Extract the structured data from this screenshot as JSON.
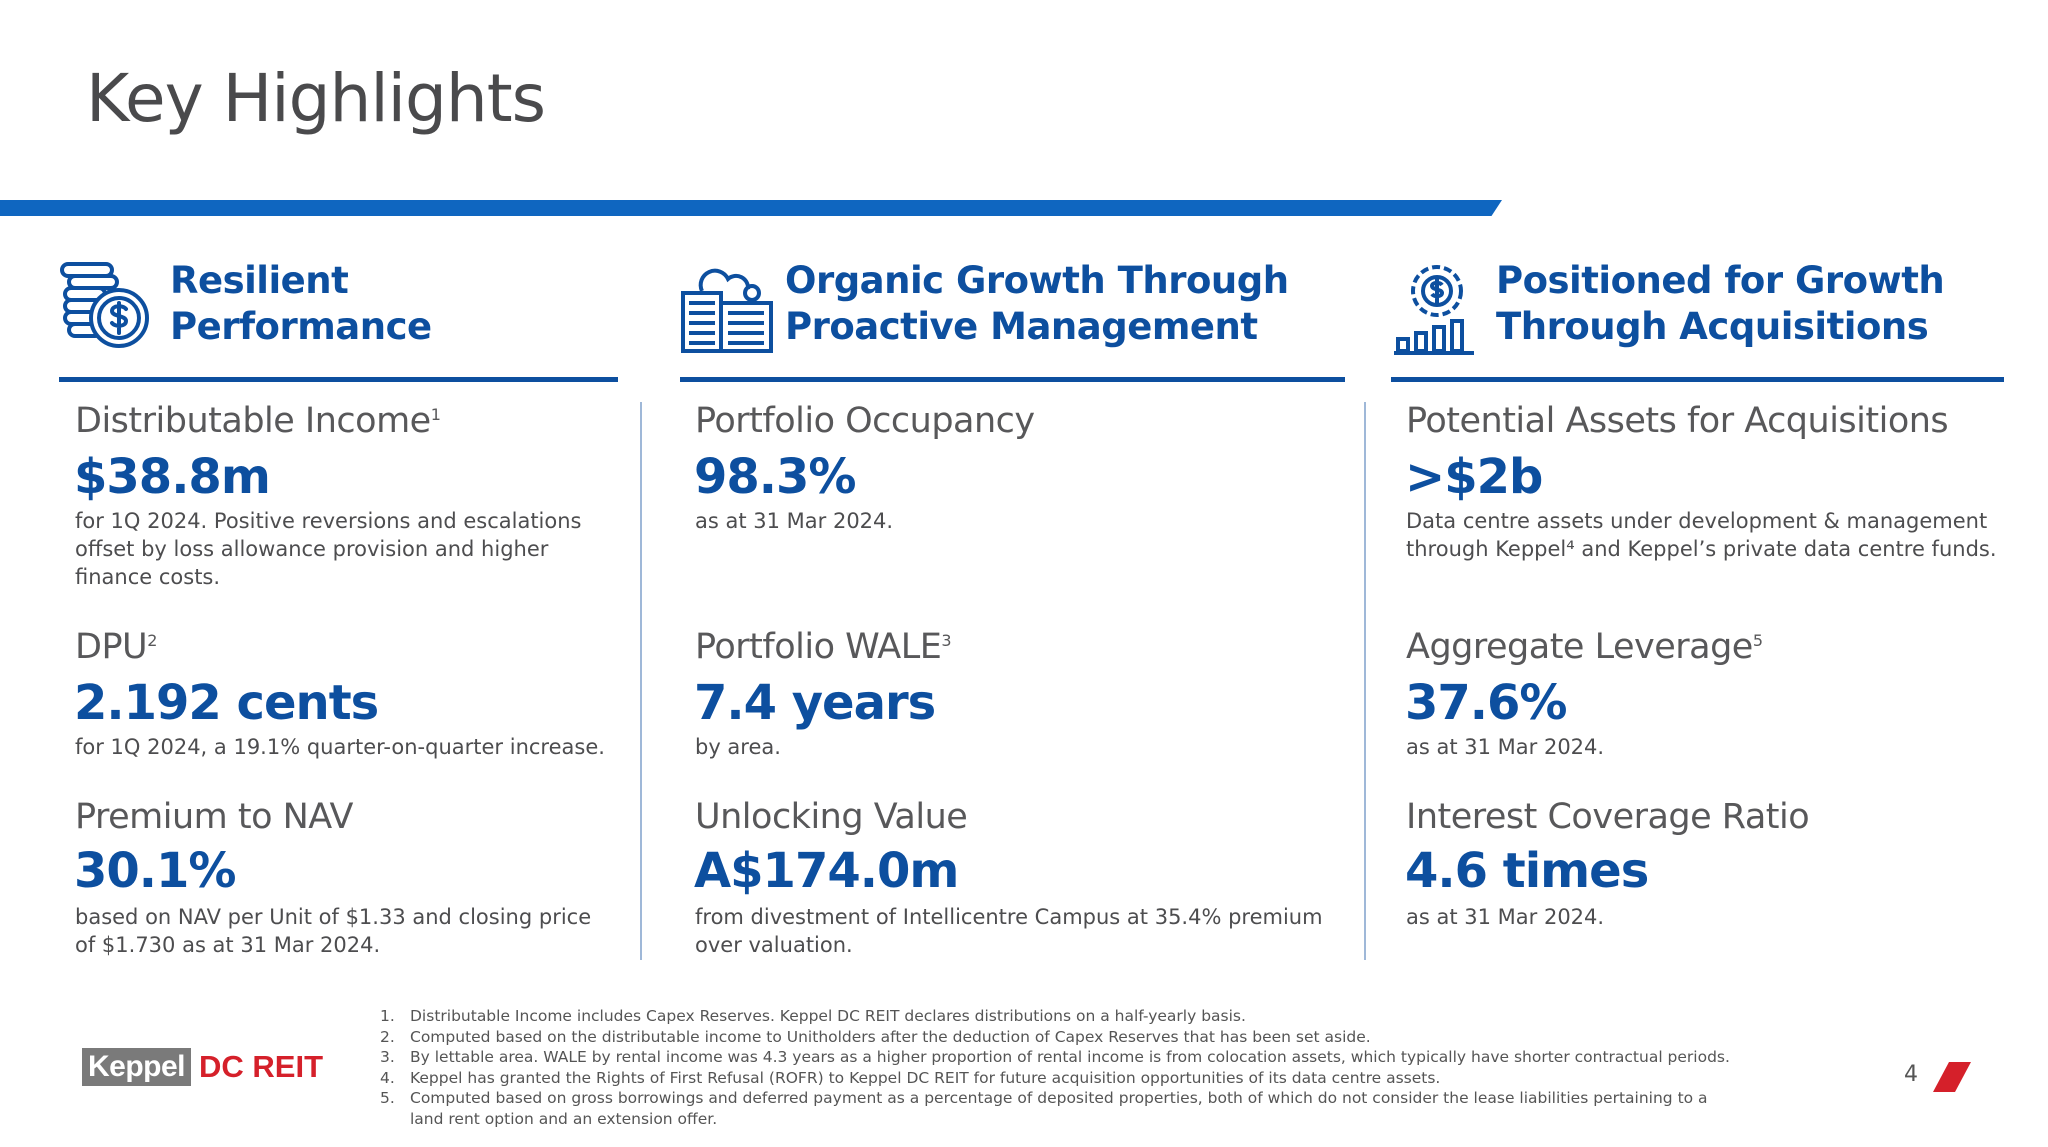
{
  "title": "Key Highlights",
  "colors": {
    "brand_blue": "#0d4f9f",
    "bar_blue": "#0f66c0",
    "logo_red": "#d5202a",
    "logo_gray": "#7a7a7a"
  },
  "columns": [
    {
      "icon": "coins-dollar-icon",
      "heading": [
        "Resilient",
        "Performance"
      ],
      "items": [
        {
          "label": "Distributable Income",
          "sup": "1",
          "value": "$38.8m",
          "desc": "for 1Q 2024. Positive reversions and escalations offset by loss allowance provision and higher finance costs."
        },
        {
          "label": "DPU",
          "sup": "2",
          "value": "2.192 cents",
          "desc": "for 1Q 2024, a 19.1% quarter-on-quarter increase."
        },
        {
          "label": "Premium to NAV",
          "sup": "",
          "value": "30.1%",
          "desc": "based on NAV per Unit of $1.33 and closing price of $1.730 as at 31 Mar 2024."
        }
      ]
    },
    {
      "icon": "data-centre-cloud-icon",
      "heading": [
        "Organic Growth Through",
        "Proactive Management"
      ],
      "items": [
        {
          "label": "Portfolio Occupancy",
          "sup": "",
          "value": "98.3%",
          "desc": "as at 31 Mar 2024."
        },
        {
          "label": "Portfolio WALE",
          "sup": "3",
          "value": "7.4 years",
          "desc": "by area."
        },
        {
          "label": "Unlocking Value",
          "sup": "",
          "value": "A$174.0m",
          "desc": "from divestment of Intellicentre Campus at 35.4% premium over valuation."
        }
      ]
    },
    {
      "icon": "gear-dollar-growth-icon",
      "heading": [
        "Positioned for Growth",
        "Through Acquisitions"
      ],
      "items": [
        {
          "label": "Potential Assets for Acquisitions",
          "sup": "",
          "value": ">$2b",
          "desc": "Data centre assets under development & management through Keppel⁴ and Keppel’s private data centre funds."
        },
        {
          "label": "Aggregate Leverage",
          "sup": "5",
          "value": "37.6%",
          "desc": "as at 31 Mar 2024."
        },
        {
          "label": "Interest Coverage Ratio",
          "sup": "",
          "value": "4.6 times",
          "desc": "as at 31 Mar 2024."
        }
      ]
    }
  ],
  "footnotes": [
    {
      "n": "1.",
      "t": "Distributable Income includes Capex Reserves. Keppel DC REIT declares distributions on a half-yearly basis."
    },
    {
      "n": "2.",
      "t": "Computed based on the distributable income to Unitholders after the deduction of Capex Reserves that has been set aside."
    },
    {
      "n": "3.",
      "t": "By lettable area. WALE by rental income was 4.3 years as a higher proportion of rental income is from colocation assets, which typically have shorter contractual periods."
    },
    {
      "n": "4.",
      "t": "Keppel has granted the Rights of First Refusal (ROFR) to Keppel DC REIT for future acquisition opportunities of its data centre assets."
    },
    {
      "n": "5.",
      "t": "Computed based on gross borrowings and deferred payment as a percentage of deposited properties, both of which do not consider the lease liabilities pertaining to a land rent option and an extension offer."
    }
  ],
  "logo": {
    "keppel": "Keppel",
    "dcreit": "DC REIT"
  },
  "page_number": "4"
}
